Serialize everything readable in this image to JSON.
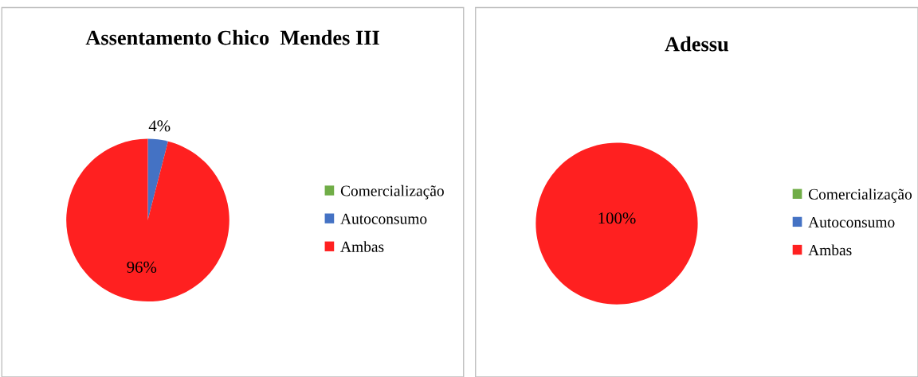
{
  "chart_data": [
    {
      "type": "pie",
      "title": "Assentamento Chico  Mendes III",
      "categories": [
        "Comercialização",
        "Autoconsumo",
        "Ambas"
      ],
      "values": [
        0,
        4,
        96
      ],
      "colors": [
        "#70ad47",
        "#4472c4",
        "#ff2020"
      ],
      "value_labels": [
        null,
        "4%",
        "96%"
      ],
      "legend": "right"
    },
    {
      "type": "pie",
      "title": "Adessu",
      "categories": [
        "Comercialização",
        "Autoconsumo",
        "Ambas"
      ],
      "values": [
        0,
        0,
        100
      ],
      "colors": [
        "#70ad47",
        "#4472c4",
        "#ff2020"
      ],
      "value_labels": [
        null,
        null,
        "100%"
      ],
      "legend": "right"
    }
  ]
}
